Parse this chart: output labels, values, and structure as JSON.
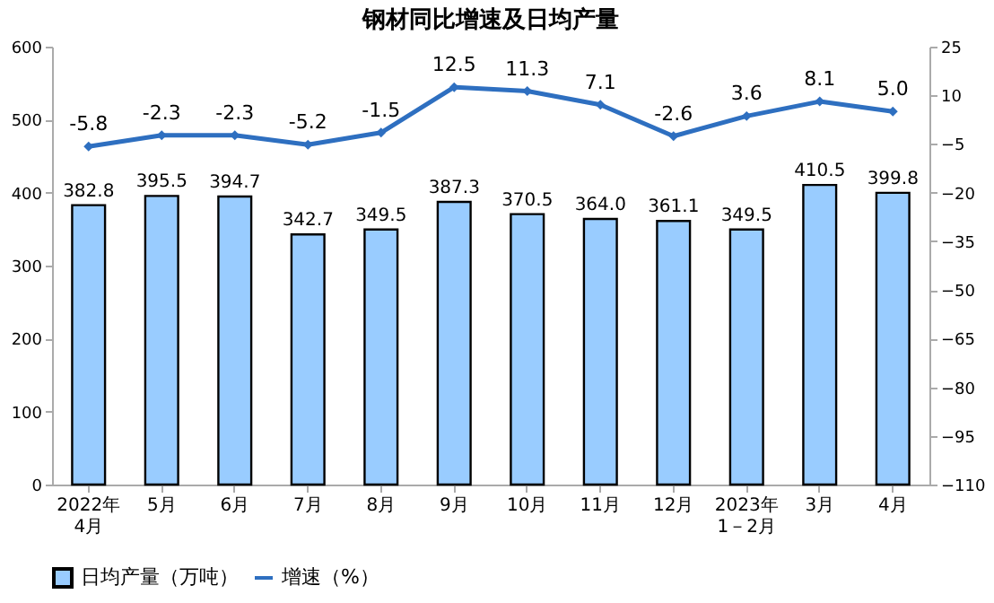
{
  "chart_data": {
    "type": "bar",
    "title": "钢材同比增速及日均产量",
    "categories": [
      "2022年\n4月",
      "5月",
      "6月",
      "7月",
      "8月",
      "9月",
      "10月",
      "11月",
      "12月",
      "2023年\n1－2月",
      "3月",
      "4月"
    ],
    "series": [
      {
        "name": "日均产量（万吨）",
        "color": "#99ccff",
        "values": [
          382.8,
          395.5,
          394.7,
          342.7,
          349.5,
          387.3,
          370.5,
          364.0,
          361.1,
          349.5,
          410.5,
          399.8
        ],
        "value_labels": [
          "382.8",
          "395.5",
          "394.7",
          "342.7",
          "349.5",
          "387.3",
          "370.5",
          "364.0",
          "361.1",
          "349.5",
          "410.5",
          "399.8"
        ]
      },
      {
        "name": "增速（%）",
        "type": "line",
        "axis": "y2",
        "color": "#2e6fc0",
        "values": [
          -5.8,
          -2.3,
          -2.3,
          -5.2,
          -1.5,
          12.5,
          11.3,
          7.1,
          -2.6,
          3.6,
          8.1,
          5.0
        ],
        "value_labels": [
          "-5.8",
          "-2.3",
          "-2.3",
          "-5.2",
          "-1.5",
          "12.5",
          "11.3",
          "7.1",
          "-2.6",
          "3.6",
          "8.1",
          "5.0"
        ]
      }
    ],
    "ylim": [
      0,
      600
    ],
    "yticks": [
      0,
      100,
      200,
      300,
      400,
      500,
      600
    ],
    "y2lim": [
      -110,
      25
    ],
    "y2ticks": [
      -110,
      -95,
      -80,
      -65,
      -50,
      -35,
      -20,
      -5,
      10,
      25
    ],
    "marker": "diamond",
    "line_style": "solid",
    "legend": "bottom"
  }
}
